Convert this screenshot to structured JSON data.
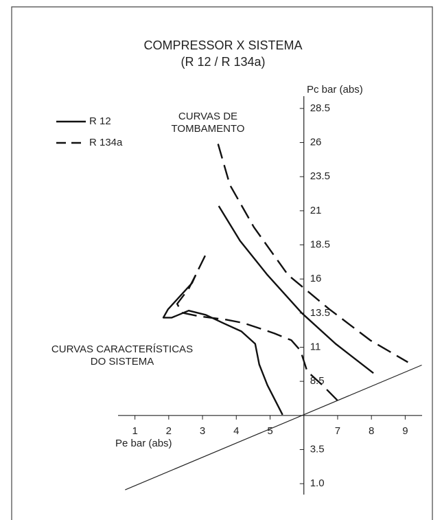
{
  "chart_data": {
    "type": "line",
    "title": "COMPRESSOR X SISTEMA",
    "subtitle": "(R 12 / R 134a)",
    "ylabel": "Pc bar (abs)",
    "xlabel": "Pe bar (abs)",
    "xlim": [
      0.5,
      9.5
    ],
    "ylim": [
      0.2,
      29.4
    ],
    "axes_cross": [
      6,
      6
    ],
    "xticks": [
      1,
      2,
      3,
      4,
      5,
      7,
      8,
      9
    ],
    "yticks": [
      {
        "value": 1,
        "label": "1.0"
      },
      3.5,
      8.5,
      11,
      13.5,
      16,
      18.5,
      21,
      23.5,
      26,
      28.5
    ],
    "series": [
      {
        "name": "R 12",
        "color": "#111111",
        "dashed": false,
        "x": [
          3.48,
          4.11,
          4.92,
          5.94,
          6.94,
          8.06,
          null,
          5.37,
          4.92,
          4.68,
          4.56,
          4.15,
          3.61,
          3.1,
          2.59,
          2.09,
          1.84,
          1.98,
          2.39,
          2.69,
          2.8
        ],
        "y": [
          21.35,
          18.8,
          16.3,
          13.5,
          11.25,
          9.1,
          null,
          6.05,
          8.22,
          9.74,
          11.25,
          12.16,
          12.77,
          13.37,
          13.68,
          13.17,
          13.17,
          13.78,
          14.89,
          15.7,
          16.3
        ]
      },
      {
        "name": "R 134a",
        "color": "#111111",
        "dashed": true,
        "x": [
          3.46,
          3.81,
          4.52,
          5.53,
          6.75,
          7.97,
          9.08,
          null,
          6.99,
          6.55,
          6.1,
          5.9,
          5.63,
          5.13,
          4.72,
          4.22,
          3.71,
          2.9,
          2.39,
          2.25,
          2.59,
          2.8,
          2.9,
          3.1
        ],
        "y": [
          25.9,
          22.9,
          19.8,
          16.3,
          13.8,
          11.5,
          9.9,
          null,
          7.11,
          8.22,
          9.23,
          10.75,
          11.51,
          12.01,
          12.36,
          12.77,
          13.02,
          13.27,
          13.53,
          14.18,
          15.29,
          16.3,
          16.81,
          17.82
        ]
      }
    ],
    "reference_line": {
      "x": [
        0.71,
        9.49
      ],
      "y": [
        0.55,
        9.69
      ]
    },
    "annotations": [
      {
        "lines": [
          "CURVAS DE",
          "TOMBAMENTO"
        ]
      },
      {
        "lines": [
          "CURVAS CARACTERÍSTICAS",
          "DO SISTEMA"
        ]
      }
    ]
  }
}
